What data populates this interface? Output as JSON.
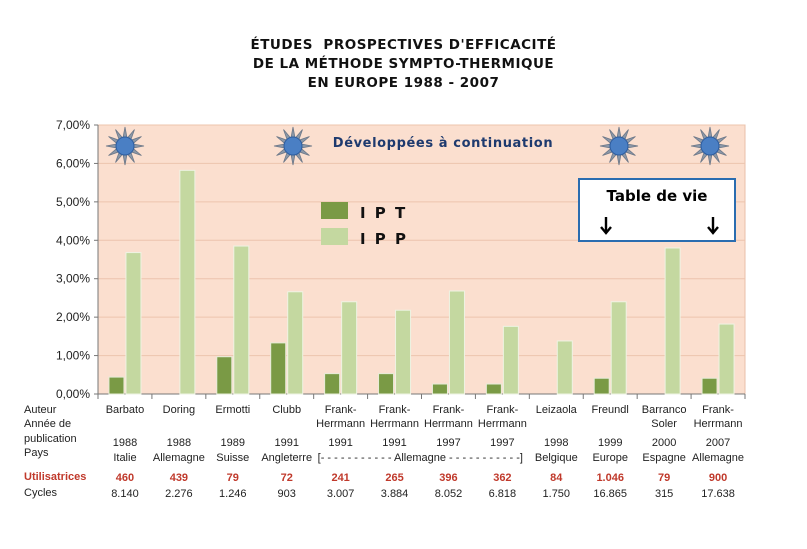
{
  "title_lines": [
    "ÉTUDES  PROSPECTIVES D'EFFICACITÉ",
    "DE LA MÉTHODE SYMPTO-THERMIQUE",
    "EN EUROPE 1988 - 2007"
  ],
  "banner_text": "Développées à continuation",
  "callout_text": "Table de vie",
  "colors": {
    "ipt": "#7a9a45",
    "ipp": "#c4d8a0",
    "plot_bg": "#fbdfcf",
    "star": "#4a7fc4",
    "callout_border": "#2a6db0"
  },
  "chart_data": {
    "type": "bar",
    "categories": [
      "Barbato",
      "Doring",
      "Ermotti",
      "Clubb",
      "Frank-Herrmann",
      "Frank-Herrmann",
      "Frank-Herrmann",
      "Frank-Herrmann",
      "Leizaola",
      "Freundl",
      "Barranco Soler",
      "Frank-Herrmann"
    ],
    "series": [
      {
        "name": "I P T",
        "values": [
          0.44,
          null,
          0.97,
          1.33,
          0.53,
          0.53,
          0.26,
          0.26,
          null,
          0.41,
          null,
          0.41
        ]
      },
      {
        "name": "I P P",
        "values": [
          3.68,
          5.82,
          3.85,
          2.66,
          2.4,
          2.18,
          2.68,
          1.76,
          1.38,
          2.4,
          3.8,
          1.82
        ]
      }
    ],
    "ylim": [
      0,
      7
    ],
    "yticks": [
      "0,00%",
      "1,00%",
      "2,00%",
      "3,00%",
      "4,00%",
      "5,00%",
      "6,00%",
      "7,00%"
    ],
    "legend": [
      "I P T",
      "I P P"
    ]
  },
  "table": {
    "row_labels": [
      "Auteur",
      "Année de",
      "publication",
      "Pays"
    ],
    "utilisatrices_label": "Utilisatrices",
    "cycles_label": "Cycles",
    "columns": [
      {
        "author": [
          "Barbato"
        ],
        "year": "1988",
        "country": "Italie",
        "utilisatrices": "460",
        "cycles": "8.140"
      },
      {
        "author": [
          "Doring"
        ],
        "year": "1988",
        "country": "Allemagne",
        "utilisatrices": "439",
        "cycles": "2.276"
      },
      {
        "author": [
          "Ermotti"
        ],
        "year": "1989",
        "country": "Suisse",
        "utilisatrices": "79",
        "cycles": "1.246"
      },
      {
        "author": [
          "Clubb"
        ],
        "year": "1991",
        "country": "Angleterre",
        "utilisatrices": "72",
        "cycles": "903"
      },
      {
        "author": [
          "Frank-",
          "Herrmann"
        ],
        "year": "1991",
        "country": "",
        "utilisatrices": "241",
        "cycles": "3.007"
      },
      {
        "author": [
          "Frank-",
          "Herrmann"
        ],
        "year": "1991",
        "country": "",
        "utilisatrices": "265",
        "cycles": "3.884"
      },
      {
        "author": [
          "Frank-",
          "Herrmann"
        ],
        "year": "1997",
        "country": "",
        "utilisatrices": "396",
        "cycles": "8.052"
      },
      {
        "author": [
          "Frank-",
          "Herrmann"
        ],
        "year": "1997",
        "country": "",
        "utilisatrices": "362",
        "cycles": "6.818"
      },
      {
        "author": [
          "Leizaola"
        ],
        "year": "1998",
        "country": "Belgique",
        "utilisatrices": "84",
        "cycles": "1.750"
      },
      {
        "author": [
          "Freundl"
        ],
        "year": "1999",
        "country": "Europe",
        "utilisatrices": "1.046",
        "cycles": "16.865"
      },
      {
        "author": [
          "Barranco",
          "Soler"
        ],
        "year": "2000",
        "country": "Espagne",
        "utilisatrices": "79",
        "cycles": "315"
      },
      {
        "author": [
          "Frank-",
          "Herrmann"
        ],
        "year": "2007",
        "country": "Allemagne",
        "utilisatrices": "900",
        "cycles": "17.638"
      }
    ],
    "country_span": "[- - - - - - - - - - - Allemagne - - - - - - - - - - -]"
  }
}
